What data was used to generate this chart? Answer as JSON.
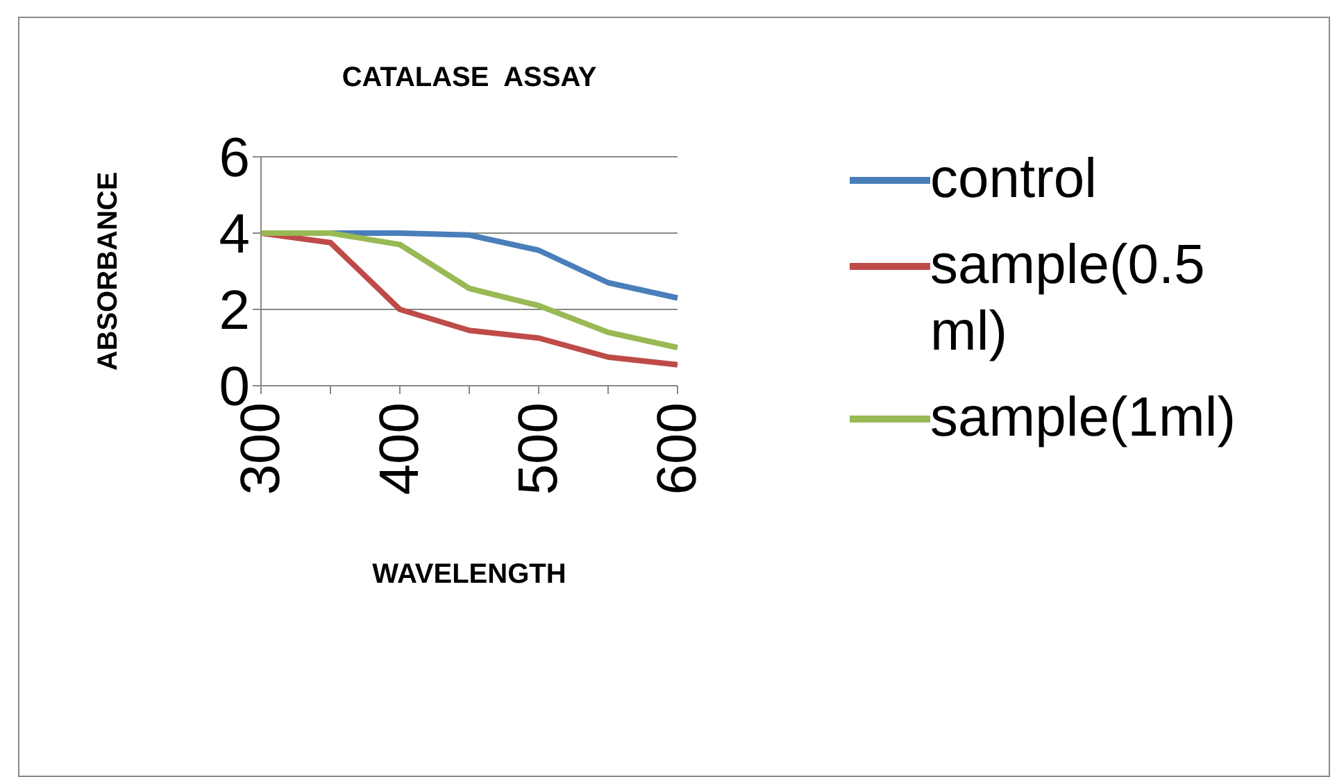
{
  "chart_data": {
    "type": "line",
    "title": "CATALASE  ASSAY",
    "xlabel": "WAVELENGTH",
    "ylabel": "ABSORBANCE",
    "categories": [
      "300",
      null,
      "400",
      null,
      "500",
      null,
      "600"
    ],
    "series": [
      {
        "name": "control",
        "color": "#4a7ebb",
        "values": [
          4,
          4,
          4,
          3.95,
          3.55,
          2.7,
          2.3
        ]
      },
      {
        "name": "sample(0.5 ml)",
        "color": "#be4b48",
        "values": [
          4,
          3.75,
          2.0,
          1.45,
          1.25,
          0.75,
          0.55
        ]
      },
      {
        "name": "sample(1ml)",
        "color": "#98b954",
        "values": [
          4,
          4,
          3.7,
          2.55,
          2.1,
          1.4,
          1.0
        ]
      }
    ],
    "ylim": [
      0,
      6
    ],
    "yticks": [
      0,
      2,
      4,
      6
    ],
    "grid": "y",
    "legend": "right",
    "marker": "none",
    "line_style": "solid"
  }
}
